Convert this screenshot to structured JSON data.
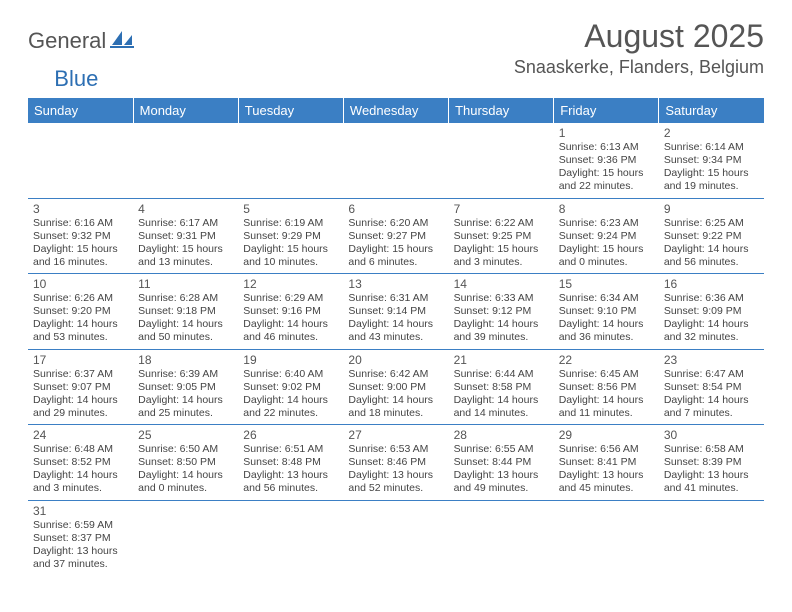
{
  "brand": {
    "part1": "General",
    "part2": "Blue"
  },
  "title": "August 2025",
  "location": "Snaaskerke, Flanders, Belgium",
  "colors": {
    "header_bg": "#3b7fc4",
    "header_fg": "#ffffff",
    "border": "#3b7fc4",
    "text": "#444444",
    "brand_accent": "#2d6fb3"
  },
  "dayHeaders": [
    "Sunday",
    "Monday",
    "Tuesday",
    "Wednesday",
    "Thursday",
    "Friday",
    "Saturday"
  ],
  "weeks": [
    [
      null,
      null,
      null,
      null,
      null,
      {
        "n": "1",
        "sr": "Sunrise: 6:13 AM",
        "ss": "Sunset: 9:36 PM",
        "d1": "Daylight: 15 hours",
        "d2": "and 22 minutes."
      },
      {
        "n": "2",
        "sr": "Sunrise: 6:14 AM",
        "ss": "Sunset: 9:34 PM",
        "d1": "Daylight: 15 hours",
        "d2": "and 19 minutes."
      }
    ],
    [
      {
        "n": "3",
        "sr": "Sunrise: 6:16 AM",
        "ss": "Sunset: 9:32 PM",
        "d1": "Daylight: 15 hours",
        "d2": "and 16 minutes."
      },
      {
        "n": "4",
        "sr": "Sunrise: 6:17 AM",
        "ss": "Sunset: 9:31 PM",
        "d1": "Daylight: 15 hours",
        "d2": "and 13 minutes."
      },
      {
        "n": "5",
        "sr": "Sunrise: 6:19 AM",
        "ss": "Sunset: 9:29 PM",
        "d1": "Daylight: 15 hours",
        "d2": "and 10 minutes."
      },
      {
        "n": "6",
        "sr": "Sunrise: 6:20 AM",
        "ss": "Sunset: 9:27 PM",
        "d1": "Daylight: 15 hours",
        "d2": "and 6 minutes."
      },
      {
        "n": "7",
        "sr": "Sunrise: 6:22 AM",
        "ss": "Sunset: 9:25 PM",
        "d1": "Daylight: 15 hours",
        "d2": "and 3 minutes."
      },
      {
        "n": "8",
        "sr": "Sunrise: 6:23 AM",
        "ss": "Sunset: 9:24 PM",
        "d1": "Daylight: 15 hours",
        "d2": "and 0 minutes."
      },
      {
        "n": "9",
        "sr": "Sunrise: 6:25 AM",
        "ss": "Sunset: 9:22 PM",
        "d1": "Daylight: 14 hours",
        "d2": "and 56 minutes."
      }
    ],
    [
      {
        "n": "10",
        "sr": "Sunrise: 6:26 AM",
        "ss": "Sunset: 9:20 PM",
        "d1": "Daylight: 14 hours",
        "d2": "and 53 minutes."
      },
      {
        "n": "11",
        "sr": "Sunrise: 6:28 AM",
        "ss": "Sunset: 9:18 PM",
        "d1": "Daylight: 14 hours",
        "d2": "and 50 minutes."
      },
      {
        "n": "12",
        "sr": "Sunrise: 6:29 AM",
        "ss": "Sunset: 9:16 PM",
        "d1": "Daylight: 14 hours",
        "d2": "and 46 minutes."
      },
      {
        "n": "13",
        "sr": "Sunrise: 6:31 AM",
        "ss": "Sunset: 9:14 PM",
        "d1": "Daylight: 14 hours",
        "d2": "and 43 minutes."
      },
      {
        "n": "14",
        "sr": "Sunrise: 6:33 AM",
        "ss": "Sunset: 9:12 PM",
        "d1": "Daylight: 14 hours",
        "d2": "and 39 minutes."
      },
      {
        "n": "15",
        "sr": "Sunrise: 6:34 AM",
        "ss": "Sunset: 9:10 PM",
        "d1": "Daylight: 14 hours",
        "d2": "and 36 minutes."
      },
      {
        "n": "16",
        "sr": "Sunrise: 6:36 AM",
        "ss": "Sunset: 9:09 PM",
        "d1": "Daylight: 14 hours",
        "d2": "and 32 minutes."
      }
    ],
    [
      {
        "n": "17",
        "sr": "Sunrise: 6:37 AM",
        "ss": "Sunset: 9:07 PM",
        "d1": "Daylight: 14 hours",
        "d2": "and 29 minutes."
      },
      {
        "n": "18",
        "sr": "Sunrise: 6:39 AM",
        "ss": "Sunset: 9:05 PM",
        "d1": "Daylight: 14 hours",
        "d2": "and 25 minutes."
      },
      {
        "n": "19",
        "sr": "Sunrise: 6:40 AM",
        "ss": "Sunset: 9:02 PM",
        "d1": "Daylight: 14 hours",
        "d2": "and 22 minutes."
      },
      {
        "n": "20",
        "sr": "Sunrise: 6:42 AM",
        "ss": "Sunset: 9:00 PM",
        "d1": "Daylight: 14 hours",
        "d2": "and 18 minutes."
      },
      {
        "n": "21",
        "sr": "Sunrise: 6:44 AM",
        "ss": "Sunset: 8:58 PM",
        "d1": "Daylight: 14 hours",
        "d2": "and 14 minutes."
      },
      {
        "n": "22",
        "sr": "Sunrise: 6:45 AM",
        "ss": "Sunset: 8:56 PM",
        "d1": "Daylight: 14 hours",
        "d2": "and 11 minutes."
      },
      {
        "n": "23",
        "sr": "Sunrise: 6:47 AM",
        "ss": "Sunset: 8:54 PM",
        "d1": "Daylight: 14 hours",
        "d2": "and 7 minutes."
      }
    ],
    [
      {
        "n": "24",
        "sr": "Sunrise: 6:48 AM",
        "ss": "Sunset: 8:52 PM",
        "d1": "Daylight: 14 hours",
        "d2": "and 3 minutes."
      },
      {
        "n": "25",
        "sr": "Sunrise: 6:50 AM",
        "ss": "Sunset: 8:50 PM",
        "d1": "Daylight: 14 hours",
        "d2": "and 0 minutes."
      },
      {
        "n": "26",
        "sr": "Sunrise: 6:51 AM",
        "ss": "Sunset: 8:48 PM",
        "d1": "Daylight: 13 hours",
        "d2": "and 56 minutes."
      },
      {
        "n": "27",
        "sr": "Sunrise: 6:53 AM",
        "ss": "Sunset: 8:46 PM",
        "d1": "Daylight: 13 hours",
        "d2": "and 52 minutes."
      },
      {
        "n": "28",
        "sr": "Sunrise: 6:55 AM",
        "ss": "Sunset: 8:44 PM",
        "d1": "Daylight: 13 hours",
        "d2": "and 49 minutes."
      },
      {
        "n": "29",
        "sr": "Sunrise: 6:56 AM",
        "ss": "Sunset: 8:41 PM",
        "d1": "Daylight: 13 hours",
        "d2": "and 45 minutes."
      },
      {
        "n": "30",
        "sr": "Sunrise: 6:58 AM",
        "ss": "Sunset: 8:39 PM",
        "d1": "Daylight: 13 hours",
        "d2": "and 41 minutes."
      }
    ],
    [
      {
        "n": "31",
        "sr": "Sunrise: 6:59 AM",
        "ss": "Sunset: 8:37 PM",
        "d1": "Daylight: 13 hours",
        "d2": "and 37 minutes."
      },
      null,
      null,
      null,
      null,
      null,
      null
    ]
  ]
}
